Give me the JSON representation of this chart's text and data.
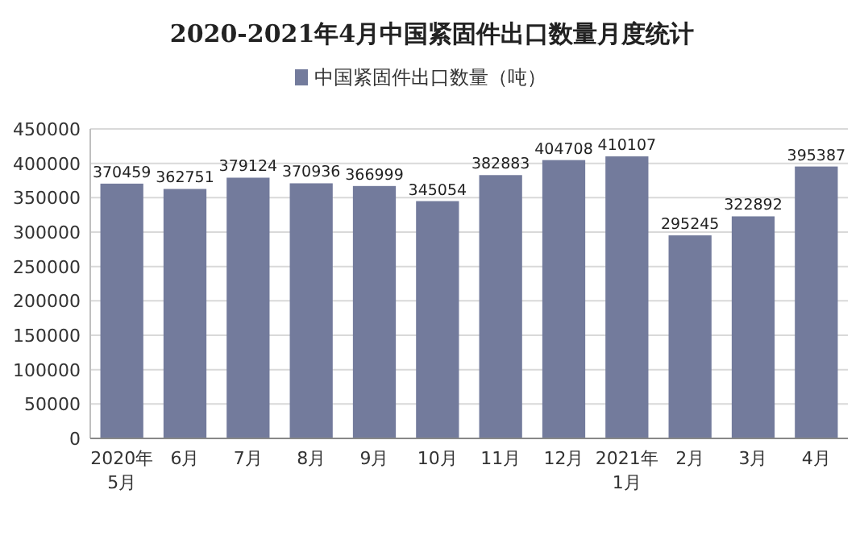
{
  "chart_data": {
    "type": "bar",
    "title": "2020-2021年4月中国紧固件出口数量月度统计",
    "categories": [
      "2020年\n5月",
      "6月",
      "7月",
      "8月",
      "9月",
      "10月",
      "11月",
      "12月",
      "2021年\n1月",
      "2月",
      "3月",
      "4月"
    ],
    "series": [
      {
        "name": "中国紧固件出口数量（吨）",
        "color": "#737b9c",
        "values": [
          370459,
          362751,
          379124,
          370936,
          366999,
          345054,
          382883,
          404708,
          410107,
          295245,
          322892,
          395387
        ]
      }
    ],
    "ylim": [
      0,
      450000
    ],
    "yticks": [
      0,
      50000,
      100000,
      150000,
      200000,
      250000,
      300000,
      350000,
      400000,
      450000
    ],
    "grid": "y",
    "legend": "top",
    "data_labels": true
  }
}
